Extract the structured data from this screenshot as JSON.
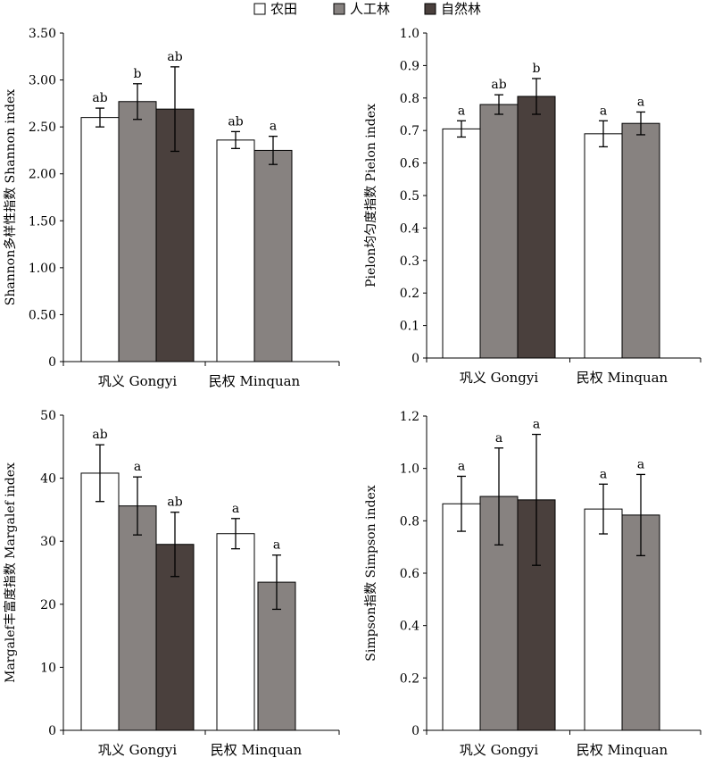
{
  "legend": [
    {
      "name": "农田",
      "color": "#ffffff"
    },
    {
      "name": "人工林",
      "color": "#878280"
    },
    {
      "name": "自然林",
      "color": "#4a403d"
    }
  ],
  "chart_data": [
    {
      "type": "bar",
      "ylabel": "Shannon多样性指数 Shannon index",
      "ylim": [
        0,
        3.5
      ],
      "yticks": [
        "0",
        "0.50",
        "1.00",
        "1.50",
        "2.00",
        "2.50",
        "3.00",
        "3.50"
      ],
      "categories": [
        "巩义 Gongyi",
        "民权 Minquan"
      ],
      "series": [
        {
          "name": "农田",
          "values": [
            2.6,
            2.36
          ],
          "errors": [
            0.1,
            0.09
          ],
          "labels": [
            "ab",
            "ab"
          ]
        },
        {
          "name": "人工林",
          "values": [
            2.77,
            2.25
          ],
          "errors": [
            0.19,
            0.15
          ],
          "labels": [
            "b",
            "a"
          ]
        },
        {
          "name": "自然林",
          "values": [
            2.69,
            null
          ],
          "errors": [
            0.45,
            null
          ],
          "labels": [
            "ab",
            ""
          ]
        }
      ]
    },
    {
      "type": "bar",
      "ylabel": "Pielon均匀度指数 Pielon index",
      "ylim": [
        0,
        1.0
      ],
      "yticks": [
        "0",
        "0.1",
        "0.2",
        "0.3",
        "0.4",
        "0.5",
        "0.6",
        "0.7",
        "0.8",
        "0.9",
        "1.0"
      ],
      "categories": [
        "巩义 Gongyi",
        "民权 Minquan"
      ],
      "series": [
        {
          "name": "农田",
          "values": [
            0.705,
            0.69
          ],
          "errors": [
            0.025,
            0.04
          ],
          "labels": [
            "a",
            "a"
          ]
        },
        {
          "name": "人工林",
          "values": [
            0.78,
            0.722
          ],
          "errors": [
            0.03,
            0.035
          ],
          "labels": [
            "ab",
            "a"
          ]
        },
        {
          "name": "自然林",
          "values": [
            0.805,
            null
          ],
          "errors": [
            0.055,
            null
          ],
          "labels": [
            "b",
            ""
          ]
        }
      ]
    },
    {
      "type": "bar",
      "ylabel": "Margalef丰富度指数 Margalef index",
      "ylim": [
        0,
        50
      ],
      "yticks": [
        "0",
        "10",
        "20",
        "30",
        "40",
        "50"
      ],
      "categories": [
        "巩义 Gongyi",
        "民权 Minquan"
      ],
      "series": [
        {
          "name": "农田",
          "values": [
            40.8,
            31.2
          ],
          "errors": [
            4.5,
            2.4
          ],
          "labels": [
            "ab",
            "a"
          ]
        },
        {
          "name": "人工林",
          "values": [
            35.6,
            23.5
          ],
          "errors": [
            4.6,
            4.3
          ],
          "labels": [
            "a",
            "a"
          ]
        },
        {
          "name": "自然林",
          "values": [
            29.5,
            null
          ],
          "errors": [
            5.1,
            null
          ],
          "labels": [
            "ab",
            ""
          ]
        }
      ]
    },
    {
      "type": "bar",
      "ylabel": "Simpson指数 Simpson index",
      "ylim": [
        0,
        1.2
      ],
      "yticks": [
        "0",
        "0.2",
        "0.4",
        "0.6",
        "0.8",
        "1.0",
        "1.2"
      ],
      "categories": [
        "巩义 Gongyi",
        "民权 Minquan"
      ],
      "series": [
        {
          "name": "农田",
          "values": [
            0.865,
            0.845
          ],
          "errors": [
            0.105,
            0.095
          ],
          "labels": [
            "a",
            "a"
          ]
        },
        {
          "name": "人工林",
          "values": [
            0.893,
            0.822
          ],
          "errors": [
            0.185,
            0.155
          ],
          "labels": [
            "a",
            "a"
          ]
        },
        {
          "name": "自然林",
          "values": [
            0.88,
            null
          ],
          "errors": [
            0.25,
            null
          ],
          "labels": [
            "a",
            ""
          ]
        }
      ]
    }
  ]
}
